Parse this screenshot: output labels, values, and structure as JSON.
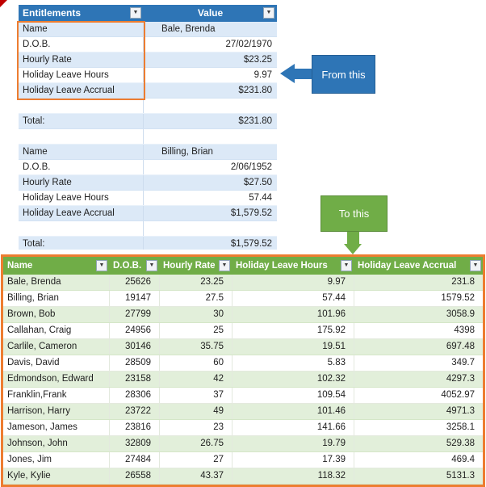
{
  "colors": {
    "blue_header": "#2E75B6",
    "blue_band": "#DCE9F7",
    "green_header": "#70AD47",
    "green_band": "#E2EFDA",
    "highlight_orange": "#ED7D31",
    "callout_blue": "#2E75B6",
    "callout_green": "#70AD47",
    "red_marker": "#C00000"
  },
  "icons": {
    "filter_arrow": "▼"
  },
  "top_table": {
    "headers": [
      "Entitlements",
      "Value"
    ],
    "rows": [
      {
        "label": "Name",
        "value": "Bale, Brenda",
        "align": "left"
      },
      {
        "label": "D.O.B.",
        "value": "27/02/1970"
      },
      {
        "label": "Hourly Rate",
        "value": "$23.25"
      },
      {
        "label": "Holiday Leave Hours",
        "value": "9.97"
      },
      {
        "label": "Holiday Leave Accrual",
        "value": "$231.80"
      },
      {
        "label": "",
        "value": ""
      },
      {
        "label": "Total:",
        "value": "$231.80"
      },
      {
        "label": "",
        "value": ""
      },
      {
        "label": "Name",
        "value": "Billing, Brian",
        "align": "left"
      },
      {
        "label": "D.O.B.",
        "value": "2/06/1952"
      },
      {
        "label": "Hourly Rate",
        "value": "$27.50"
      },
      {
        "label": "Holiday Leave Hours",
        "value": "57.44"
      },
      {
        "label": "Holiday Leave Accrual",
        "value": "$1,579.52"
      },
      {
        "label": "",
        "value": ""
      },
      {
        "label": "Total:",
        "value": "$1,579.52"
      }
    ]
  },
  "callouts": {
    "from": {
      "label": "From this"
    },
    "to": {
      "label": "To this"
    }
  },
  "bottom_table": {
    "headers": [
      "Name",
      "D.O.B.",
      "Hourly Rate",
      "Holiday Leave Hours",
      "Holiday Leave Accrual"
    ],
    "rows": [
      [
        "Bale, Brenda",
        "25626",
        "23.25",
        "9.97",
        "231.8"
      ],
      [
        "Billing, Brian",
        "19147",
        "27.5",
        "57.44",
        "1579.52"
      ],
      [
        "Brown, Bob",
        "27799",
        "30",
        "101.96",
        "3058.9"
      ],
      [
        "Callahan, Craig",
        "24956",
        "25",
        "175.92",
        "4398"
      ],
      [
        "Carlile, Cameron",
        "30146",
        "35.75",
        "19.51",
        "697.48"
      ],
      [
        "Davis, David",
        "28509",
        "60",
        "5.83",
        "349.7"
      ],
      [
        "Edmondson, Edward",
        "23158",
        "42",
        "102.32",
        "4297.3"
      ],
      [
        "Franklin,Frank",
        "28306",
        "37",
        "109.54",
        "4052.97"
      ],
      [
        "Harrison, Harry",
        "23722",
        "49",
        "101.46",
        "4971.3"
      ],
      [
        "Jameson, James",
        "23816",
        "23",
        "141.66",
        "3258.1"
      ],
      [
        "Johnson, John",
        "32809",
        "26.75",
        "19.79",
        "529.38"
      ],
      [
        "Jones, Jim",
        "27484",
        "27",
        "17.39",
        "469.4"
      ],
      [
        "Kyle, Kylie",
        "26558",
        "43.37",
        "118.32",
        "5131.3"
      ]
    ]
  }
}
